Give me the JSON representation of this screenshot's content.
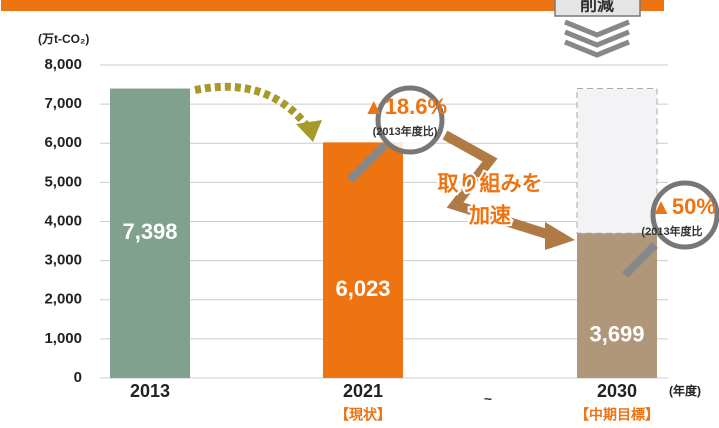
{
  "chart_data": {
    "type": "bar",
    "y_label": "(万t-CO₂)",
    "x_unit": "(年度)",
    "categories": [
      "2013",
      "2021",
      "2030"
    ],
    "sub_labels": [
      null,
      "【現状】",
      "【中期目標】"
    ],
    "values": [
      7398,
      6023,
      3699
    ],
    "value_labels": [
      "7,398",
      "6,023",
      "3,699"
    ],
    "colors": [
      "#7fa18e",
      "#ee7311",
      "#b0977a"
    ],
    "ylim": [
      0,
      8000
    ],
    "yticks": [
      0,
      {
        "value": 1000,
        "label": "1,000"
      },
      {
        "value": 2000,
        "label": "2,000"
      },
      {
        "value": 3000,
        "label": "3,000"
      },
      {
        "value": 4000,
        "label": "4,000"
      },
      {
        "value": 5000,
        "label": "5,000"
      },
      {
        "value": 6000,
        "label": "6,000"
      },
      {
        "value": 7000,
        "label": "7,000"
      },
      {
        "value": 8000,
        "label": "8,000"
      }
    ],
    "grid": true,
    "separator": "~",
    "badge": "削減",
    "annotations": {
      "reduction_2021": "▲18.6%",
      "reduction_2030": "▲50%",
      "basis_2021": "(2013年度比)",
      "basis_2030": "(2013年度比",
      "accel_1": "取り組みを",
      "accel_2": "加速"
    }
  }
}
